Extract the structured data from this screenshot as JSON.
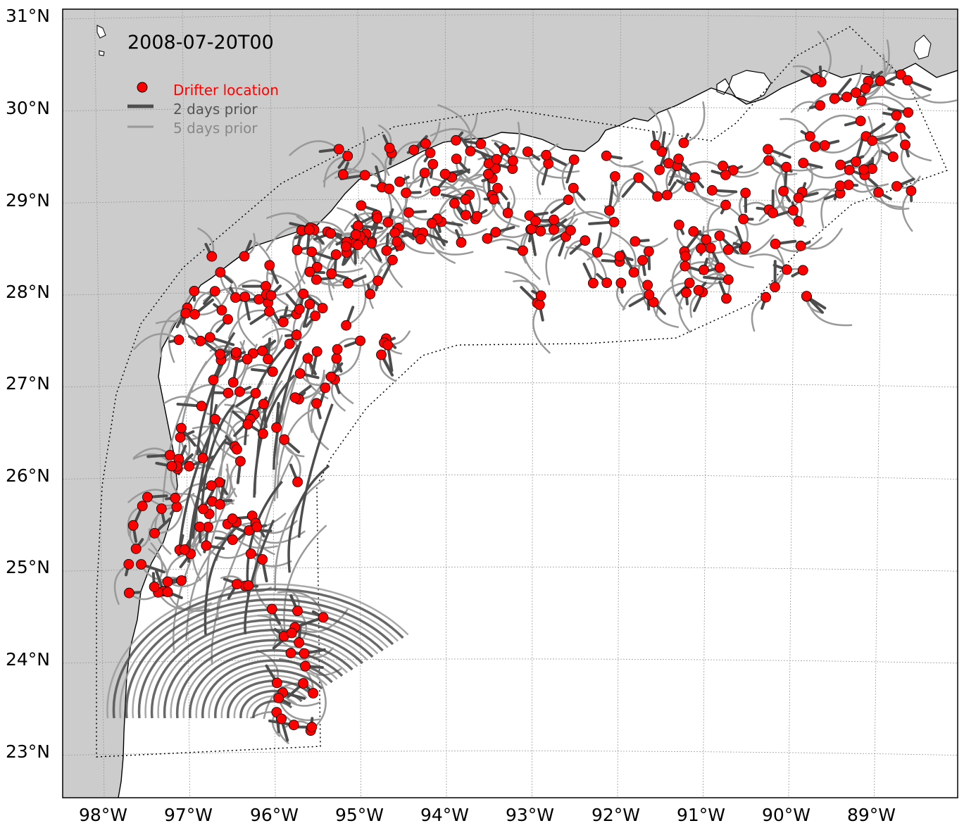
{
  "map": {
    "timestamp": "2008-07-20T00",
    "lat_labels": [
      "31°N",
      "30°N",
      "29°N",
      "28°N",
      "27°N",
      "26°N",
      "25°N",
      "24°N",
      "23°N"
    ],
    "lon_labels": [
      "98°W",
      "97°W",
      "96°W",
      "95°W",
      "94°W",
      "93°W",
      "92°W",
      "91°W",
      "90°W",
      "89°W"
    ],
    "legend": {
      "drifter_location": "Drifter location",
      "two_days_prior": "2 days prior",
      "five_days_prior": "5 days prior"
    },
    "colors": {
      "land": "#cccccc",
      "ocean": "#ffffff",
      "drifter_fill": "#ff0000",
      "drifter_label": "#ff0000",
      "track_2day": "#4d4d4d",
      "track_5day": "#999999",
      "legend_2day_text": "#555555",
      "legend_5day_text": "#888888"
    },
    "grid": true,
    "legend_position": "top-left"
  }
}
